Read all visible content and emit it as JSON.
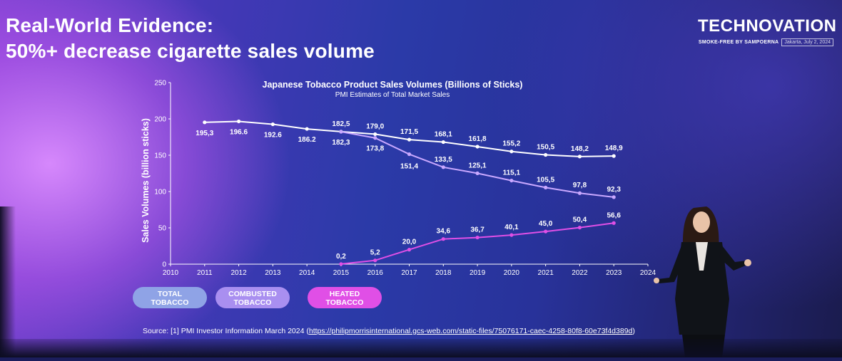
{
  "slide": {
    "title_line1": "Real-World Evidence:",
    "title_line2": "50%+ decrease cigarette sales volume"
  },
  "brand": {
    "name": "TECHNOVATION",
    "tagline": "SMOKE-FREE BY SAMPOERNA",
    "date": "Jakarta, July 2, 2024"
  },
  "colors": {
    "total": "#ffffff",
    "combusted": "#c9a8ff",
    "heated": "#e04fe6",
    "axis": "#ffffff"
  },
  "chart_data": {
    "type": "line",
    "title": "Japanese Tobacco Product Sales Volumes (Billions of Sticks)",
    "subtitle": "PMI Estimates of Total Market Sales",
    "ylabel": "Sales Volumes (billion sticks)",
    "xlabel": "",
    "xlim": [
      2010,
      2024
    ],
    "ylim": [
      0,
      250
    ],
    "x_ticks": [
      "2010",
      "2011",
      "2012",
      "2013",
      "2014",
      "2015",
      "2016",
      "2017",
      "2018",
      "2019",
      "2020",
      "2021",
      "2022",
      "2023",
      "2024"
    ],
    "y_ticks": [
      "0",
      "50",
      "100",
      "150",
      "200",
      "250"
    ],
    "series": [
      {
        "name": "Total Tobacco",
        "x": [
          2011,
          2012,
          2013,
          2014,
          2015,
          2016,
          2017,
          2018,
          2019,
          2020,
          2021,
          2022,
          2023
        ],
        "values": [
          195.3,
          196.6,
          192.6,
          186.2,
          182.5,
          179.0,
          171.5,
          168.1,
          161.8,
          155.2,
          150.5,
          148.2,
          148.9
        ],
        "labels": [
          "195,3",
          "196.6",
          "192.6",
          "186.2",
          "182,5",
          "179,0",
          "171,5",
          "168,1",
          "161,8",
          "155,2",
          "150,5",
          "148,2",
          "148,9"
        ]
      },
      {
        "name": "Combusted Tobacco",
        "x": [
          2015,
          2016,
          2017,
          2018,
          2019,
          2020,
          2021,
          2022,
          2023
        ],
        "values": [
          182.3,
          173.8,
          151.4,
          133.5,
          125.1,
          115.1,
          105.5,
          97.8,
          92.3
        ],
        "labels": [
          "182,3",
          "173,8",
          "151,4",
          "133,5",
          "125,1",
          "115,1",
          "105,5",
          "97,8",
          "92,3"
        ]
      },
      {
        "name": "Heated Tobacco",
        "x": [
          2015,
          2016,
          2017,
          2018,
          2019,
          2020,
          2021,
          2022,
          2023
        ],
        "values": [
          0.2,
          5.2,
          20.0,
          34.6,
          36.7,
          40.1,
          45.0,
          50.4,
          56.6
        ],
        "labels": [
          "0,2",
          "5,2",
          "20,0",
          "34,6",
          "36,7",
          "40,1",
          "45,0",
          "50,4",
          "56,6"
        ]
      }
    ],
    "legend": [
      "TOTAL TOBACCO",
      "COMBUSTED TOBACCO",
      "HEATED TOBACCO"
    ]
  },
  "legend_pills": {
    "total": {
      "line1": "TOTAL",
      "line2": "TOBACCO"
    },
    "combusted": {
      "line1": "COMBUSTED",
      "line2": "TOBACCO"
    },
    "heated": {
      "line1": "HEATED",
      "line2": "TOBACCO"
    }
  },
  "source": {
    "prefix": "Source: [1] PMI Investor Information March 2024 (",
    "link": "https://philipmorrisinternational.gcs-web.com/static-files/75076171-caec-4258-80f8-60e73f4d389d",
    "suffix": ")"
  }
}
